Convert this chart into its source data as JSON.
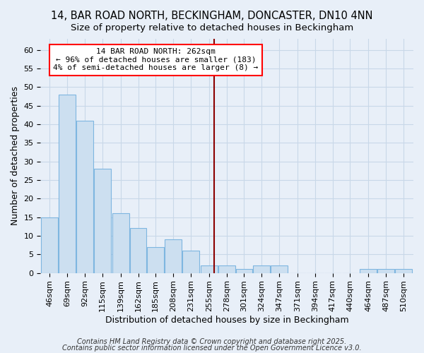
{
  "title1": "14, BAR ROAD NORTH, BECKINGHAM, DONCASTER, DN10 4NN",
  "title2": "Size of property relative to detached houses in Beckingham",
  "xlabel": "Distribution of detached houses by size in Beckingham",
  "ylabel": "Number of detached properties",
  "bins": [
    46,
    69,
    92,
    115,
    139,
    162,
    185,
    208,
    231,
    255,
    278,
    301,
    324,
    347,
    371,
    394,
    417,
    440,
    464,
    487,
    510
  ],
  "values": [
    15,
    48,
    41,
    28,
    16,
    12,
    7,
    9,
    6,
    2,
    2,
    1,
    2,
    2,
    0,
    0,
    0,
    0,
    1,
    1,
    1
  ],
  "bar_color": "#ccdff0",
  "bar_edge_color": "#7eb6e0",
  "grid_color": "#c8d8e8",
  "background_color": "#e8eff8",
  "red_line_x": 262,
  "annotation_title": "14 BAR ROAD NORTH: 262sqm",
  "annotation_line1": "← 96% of detached houses are smaller (183)",
  "annotation_line2": "4% of semi-detached houses are larger (8) →",
  "ylim": [
    0,
    63
  ],
  "yticks": [
    0,
    5,
    10,
    15,
    20,
    25,
    30,
    35,
    40,
    45,
    50,
    55,
    60
  ],
  "footer1": "Contains HM Land Registry data © Crown copyright and database right 2025.",
  "footer2": "Contains public sector information licensed under the Open Government Licence v3.0.",
  "title1_fontsize": 10.5,
  "title2_fontsize": 9.5,
  "axis_label_fontsize": 9,
  "tick_fontsize": 8,
  "annotation_fontsize": 8,
  "footer_fontsize": 7
}
